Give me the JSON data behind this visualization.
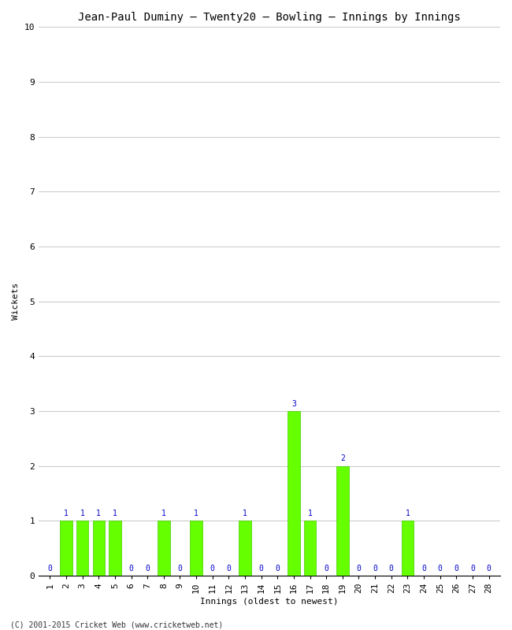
{
  "title": "Jean-Paul Duminy – Twenty20 – Bowling – Innings by Innings",
  "xlabel": "Innings (oldest to newest)",
  "ylabel": "Wickets",
  "footer": "(C) 2001-2015 Cricket Web (www.cricketweb.net)",
  "innings": [
    1,
    2,
    3,
    4,
    5,
    6,
    7,
    8,
    9,
    10,
    11,
    12,
    13,
    14,
    15,
    16,
    17,
    18,
    19,
    20,
    21,
    22,
    23,
    24,
    25,
    26,
    27,
    28
  ],
  "wickets": [
    0,
    1,
    1,
    1,
    1,
    0,
    0,
    1,
    0,
    1,
    0,
    0,
    1,
    0,
    0,
    3,
    1,
    0,
    2,
    0,
    0,
    0,
    1,
    0,
    0,
    0,
    0,
    0
  ],
  "bar_color": "#66ff00",
  "bar_edge_color": "#44cc00",
  "label_color": "#0000cc",
  "ylim": [
    0,
    10
  ],
  "yticks": [
    0,
    1,
    2,
    3,
    4,
    5,
    6,
    7,
    8,
    9,
    10
  ],
  "background_color": "#ffffff",
  "grid_color": "#cccccc",
  "title_fontsize": 10,
  "axis_label_fontsize": 8,
  "tick_label_fontsize": 8,
  "bar_label_fontsize": 7
}
